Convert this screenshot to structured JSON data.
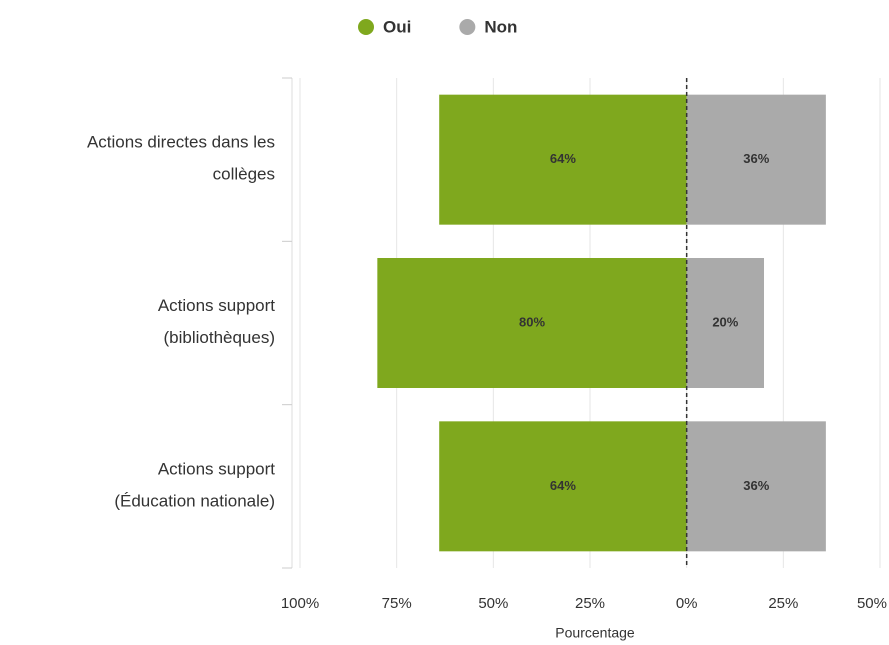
{
  "chart_data": {
    "type": "diverging-bar",
    "categories": [
      [
        "Actions directes dans les",
        "collèges"
      ],
      [
        "Actions support",
        "(bibliothèques)"
      ],
      [
        "Actions support",
        "(Éducation nationale)"
      ]
    ],
    "series": [
      {
        "name": "Oui",
        "color": "#7fa81e",
        "values": [
          -64,
          -80,
          -64
        ],
        "value_labels": [
          "64%",
          "80%",
          "64%"
        ]
      },
      {
        "name": "Non",
        "color": "#aaaaaa",
        "values": [
          36,
          20,
          36
        ],
        "value_labels": [
          "36%",
          "20%",
          "36%"
        ]
      }
    ],
    "xlabel": "Pourcentage",
    "xlim": [
      -100,
      50
    ],
    "xticks": [
      {
        "value": -100,
        "label": "100%"
      },
      {
        "value": -75,
        "label": "75%"
      },
      {
        "value": -50,
        "label": "50%"
      },
      {
        "value": -25,
        "label": "25%"
      },
      {
        "value": 0,
        "label": "0%"
      },
      {
        "value": 25,
        "label": "25%"
      },
      {
        "value": 50,
        "label": "50%"
      }
    ],
    "grid": true,
    "legend": "top"
  }
}
